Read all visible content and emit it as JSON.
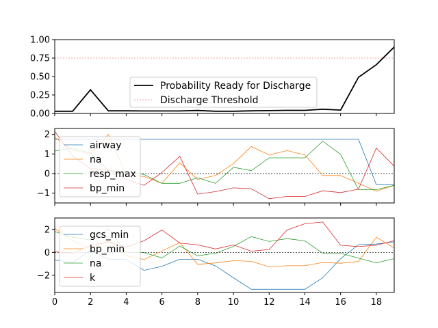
{
  "chart_data": [
    {
      "type": "line",
      "x": [
        0,
        1,
        2,
        3,
        4,
        5,
        6,
        7,
        8,
        9,
        10,
        11,
        12,
        13,
        14,
        15,
        16,
        17,
        18,
        19
      ],
      "ylim": [
        0,
        1.0
      ],
      "yticks": [
        "0.00",
        "0.25",
        "0.50",
        "0.75",
        "1.00"
      ],
      "grid": false,
      "legend_position": "bottom-center",
      "threshold": 0.75,
      "series": [
        {
          "name": "Probability Ready for Discharge",
          "color": "#000000",
          "values": [
            0.03,
            0.03,
            0.32,
            0.035,
            0.035,
            0.033,
            0.033,
            0.033,
            0.04,
            0.03,
            0.03,
            0.035,
            0.038,
            0.042,
            0.042,
            0.057,
            0.045,
            0.49,
            0.66,
            0.9
          ]
        }
      ],
      "threshold_label": "Discharge Threshold",
      "threshold_color": "#f08080"
    },
    {
      "type": "line",
      "x": [
        0,
        1,
        2,
        3,
        4,
        5,
        6,
        7,
        8,
        9,
        10,
        11,
        12,
        13,
        14,
        15,
        16,
        17,
        18,
        19
      ],
      "ylim": [
        -1.5,
        2.3
      ],
      "yticks": [
        "−1",
        "0",
        "1",
        "2"
      ],
      "grid": false,
      "legend_position": "upper-left",
      "series": [
        {
          "name": "airway",
          "color": "#1f77b4",
          "values": [
            1.75,
            1.75,
            1.75,
            1.75,
            1.75,
            1.75,
            1.75,
            1.75,
            1.75,
            1.75,
            1.75,
            1.75,
            1.75,
            1.75,
            1.75,
            1.75,
            1.75,
            1.75,
            -0.57,
            -0.55
          ]
        },
        {
          "name": "na",
          "color": "#ff7f0e",
          "values": [
            1.85,
            1.2,
            1.0,
            2.0,
            -0.05,
            -0.15,
            -0.5,
            0.55,
            -0.3,
            -0.1,
            0.5,
            1.38,
            0.95,
            1.17,
            0.95,
            -0.1,
            -0.1,
            -0.5,
            -0.9,
            -0.6
          ]
        },
        {
          "name": "resp_max",
          "color": "#2ca02c",
          "values": [
            1.15,
            1.3,
            1.05,
            0.15,
            0.1,
            -0.05,
            -0.5,
            -0.5,
            -0.22,
            -0.5,
            0.32,
            0.15,
            0.8,
            0.8,
            0.8,
            1.65,
            0.98,
            -0.82,
            -0.82,
            -0.6
          ]
        },
        {
          "name": "bp_min",
          "color": "#d62728",
          "values": [
            2.15,
            0.9,
            0.25,
            0.2,
            -0.3,
            -0.6,
            0.05,
            0.88,
            -1.05,
            -0.92,
            -0.73,
            -0.78,
            -1.28,
            -1.17,
            -1.17,
            -0.88,
            -0.97,
            -0.8,
            1.3,
            0.38
          ]
        }
      ]
    },
    {
      "type": "line",
      "x": [
        0,
        1,
        2,
        3,
        4,
        5,
        6,
        7,
        8,
        9,
        10,
        11,
        12,
        13,
        14,
        15,
        16,
        17,
        18,
        19
      ],
      "ylim": [
        -3.5,
        3.0
      ],
      "yticks": [
        "−2",
        "0",
        "2"
      ],
      "grid": false,
      "legend_position": "upper-left",
      "series": [
        {
          "name": "gcs_min",
          "color": "#1f77b4",
          "values": [
            -0.65,
            -0.92,
            0.2,
            -0.6,
            -0.62,
            -1.57,
            -1.22,
            -0.6,
            -0.6,
            -1.18,
            -2.22,
            -3.22,
            -3.22,
            -3.22,
            -3.22,
            -2.22,
            -0.55,
            0.67,
            0.72,
            0.92
          ]
        },
        {
          "name": "bp_min",
          "color": "#ff7f0e",
          "values": [
            2.1,
            1.02,
            0.32,
            1.02,
            -0.3,
            -0.62,
            0.12,
            0.85,
            -1.05,
            -0.92,
            -0.73,
            -0.78,
            -1.27,
            -1.17,
            -1.17,
            -0.88,
            -0.95,
            -0.8,
            1.32,
            0.38
          ]
        },
        {
          "name": "na",
          "color": "#2ca02c",
          "values": [
            1.82,
            1.32,
            1.08,
            2.02,
            0.02,
            -0.02,
            -0.48,
            0.55,
            -0.3,
            -0.08,
            0.52,
            1.38,
            0.95,
            1.2,
            1.0,
            -0.08,
            -0.08,
            -0.5,
            -0.92,
            -0.55
          ]
        },
        {
          "name": "k",
          "color": "#d62728",
          "values": [
            0.05,
            -0.08,
            0.62,
            0.9,
            0.45,
            1.02,
            1.95,
            0.82,
            0.65,
            0.3,
            0.65,
            0.1,
            0.25,
            1.95,
            2.5,
            2.65,
            0.62,
            0.5,
            0.62,
            1.02
          ]
        }
      ]
    }
  ],
  "x_ticks": [
    "0",
    "2",
    "4",
    "6",
    "8",
    "10",
    "12",
    "14",
    "16",
    "18"
  ]
}
